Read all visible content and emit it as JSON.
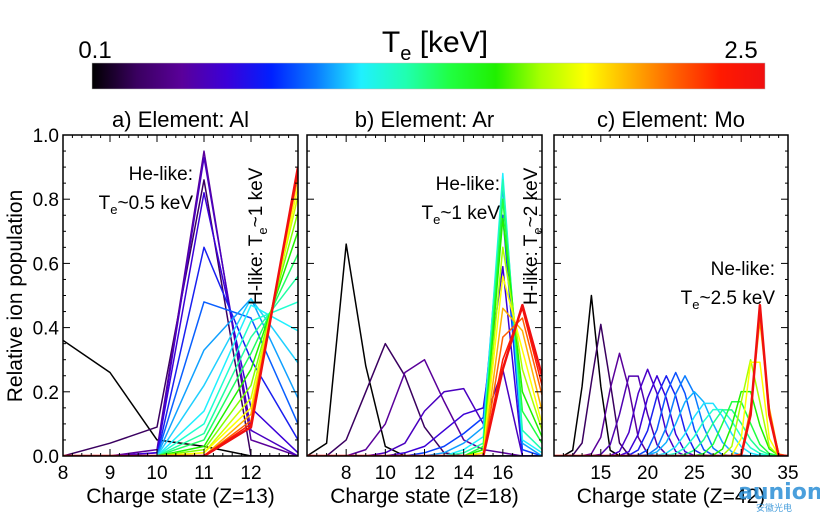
{
  "colorbar": {
    "title": "T",
    "title_sub": "e",
    "title_unit": " [keV]",
    "min_label": "0.1",
    "max_label": "2.5",
    "stops": [
      "#000000",
      "#3a0060",
      "#5a009a",
      "#3b00d8",
      "#0020ff",
      "#0a7cff",
      "#20f0ff",
      "#20ffb0",
      "#20ff40",
      "#20f000",
      "#a8ff00",
      "#ffff00",
      "#ffb000",
      "#ff6000",
      "#ff1a00",
      "#f01010"
    ]
  },
  "ylabel": "Relative ion population",
  "watermark": {
    "text": "aunion",
    "sub": "安徽光电"
  },
  "chart_data": [
    {
      "type": "line",
      "title": "a) Element: Al",
      "xlabel": "Charge state (Z=13)",
      "xlim": [
        8,
        13
      ],
      "ylim": [
        0,
        1.0
      ],
      "xticks": [
        8,
        9,
        10,
        11,
        12
      ],
      "yticks": [
        "0.0",
        "0.2",
        "0.4",
        "0.6",
        "0.8",
        "1.0"
      ],
      "annotations": [
        {
          "text": "He-like:",
          "line2": "T",
          "sub": "e",
          "rest": "~0.5 keV"
        },
        {
          "text": "H-like: T",
          "sub": "e",
          "rest": "~1 keV",
          "rotated": true
        }
      ],
      "x": [
        8,
        9,
        10,
        11,
        12,
        13
      ],
      "series": [
        {
          "color": "#000000",
          "values": [
            0.36,
            0.26,
            0.05,
            0.03,
            0.0,
            0.0
          ]
        },
        {
          "color": "#3a0060",
          "values": [
            0.0,
            0.04,
            0.09,
            0.86,
            0.0,
            0.0
          ]
        },
        {
          "color": "#5a009a",
          "values": [
            0.0,
            0.0,
            0.02,
            0.95,
            0.05,
            0.0
          ]
        },
        {
          "color": "#4a00c0",
          "values": [
            0.0,
            0.0,
            0.01,
            0.93,
            0.08,
            0.0
          ]
        },
        {
          "color": "#3b00d8",
          "values": [
            0.0,
            0.0,
            0.01,
            0.82,
            0.15,
            0.01
          ]
        },
        {
          "color": "#1a20f0",
          "values": [
            0.0,
            0.0,
            0.0,
            0.65,
            0.3,
            0.05
          ]
        },
        {
          "color": "#0a60ff",
          "values": [
            0.0,
            0.0,
            0.0,
            0.48,
            0.43,
            0.1
          ]
        },
        {
          "color": "#10a0ff",
          "values": [
            0.0,
            0.0,
            0.0,
            0.33,
            0.49,
            0.18
          ]
        },
        {
          "color": "#20d0ff",
          "values": [
            0.0,
            0.0,
            0.0,
            0.22,
            0.49,
            0.29
          ]
        },
        {
          "color": "#20f0ff",
          "values": [
            0.0,
            0.0,
            0.0,
            0.14,
            0.47,
            0.39
          ]
        },
        {
          "color": "#20ffd0",
          "values": [
            0.0,
            0.0,
            0.0,
            0.1,
            0.42,
            0.48
          ]
        },
        {
          "color": "#20ffa0",
          "values": [
            0.0,
            0.0,
            0.0,
            0.07,
            0.37,
            0.56
          ]
        },
        {
          "color": "#20ff60",
          "values": [
            0.0,
            0.0,
            0.0,
            0.05,
            0.32,
            0.63
          ]
        },
        {
          "color": "#20f000",
          "values": [
            0.0,
            0.0,
            0.0,
            0.03,
            0.27,
            0.7
          ]
        },
        {
          "color": "#80ff00",
          "values": [
            0.0,
            0.0,
            0.0,
            0.02,
            0.22,
            0.76
          ]
        },
        {
          "color": "#d0ff00",
          "values": [
            0.0,
            0.0,
            0.0,
            0.01,
            0.18,
            0.81
          ]
        },
        {
          "color": "#ffff00",
          "values": [
            0.0,
            0.0,
            0.0,
            0.01,
            0.15,
            0.84
          ]
        },
        {
          "color": "#ffb000",
          "values": [
            0.0,
            0.0,
            0.0,
            0.0,
            0.13,
            0.87
          ]
        },
        {
          "color": "#ff6000",
          "values": [
            0.0,
            0.0,
            0.0,
            0.0,
            0.11,
            0.88
          ]
        },
        {
          "color": "#ff1a00",
          "values": [
            0.0,
            0.0,
            0.0,
            0.0,
            0.1,
            0.89
          ]
        },
        {
          "color": "#f01010",
          "values": [
            0.0,
            0.0,
            0.0,
            0.0,
            0.09,
            0.9
          ]
        }
      ]
    },
    {
      "type": "line",
      "title": "b) Element: Ar",
      "xlabel": "Charge state (Z=18)",
      "xlim": [
        6,
        18
      ],
      "ylim": [
        0,
        1.0
      ],
      "xticks": [
        8,
        10,
        12,
        14,
        16
      ],
      "annotations": [
        {
          "text": "He-like:",
          "line2": "T",
          "sub": "e",
          "rest": "~1 keV"
        },
        {
          "text": "H-like: T",
          "sub": "e",
          "rest": "~2 keV",
          "rotated": true
        }
      ],
      "x": [
        6,
        7,
        8,
        9,
        10,
        11,
        12,
        13,
        14,
        15,
        16,
        17,
        18
      ],
      "series": [
        {
          "color": "#000000",
          "values": [
            0.0,
            0.04,
            0.66,
            0.28,
            0.03,
            0.0,
            0.0,
            0.0,
            0.0,
            0.0,
            0.0,
            0.0,
            0.0
          ]
        },
        {
          "color": "#3a0060",
          "values": [
            0.0,
            0.0,
            0.05,
            0.2,
            0.35,
            0.25,
            0.09,
            0.01,
            0.0,
            0.0,
            0.0,
            0.0,
            0.0
          ]
        },
        {
          "color": "#5a009a",
          "values": [
            0.0,
            0.0,
            0.0,
            0.02,
            0.1,
            0.26,
            0.3,
            0.17,
            0.05,
            0.02,
            0.01,
            0.0,
            0.0
          ]
        },
        {
          "color": "#4a00c0",
          "values": [
            0.0,
            0.0,
            0.0,
            0.0,
            0.01,
            0.04,
            0.14,
            0.2,
            0.21,
            0.1,
            0.27,
            0.0,
            0.0
          ]
        },
        {
          "color": "#3b00d8",
          "values": [
            0.0,
            0.0,
            0.0,
            0.0,
            0.0,
            0.01,
            0.03,
            0.08,
            0.13,
            0.15,
            0.59,
            0.0,
            0.0
          ]
        },
        {
          "color": "#0a40ff",
          "values": [
            0.0,
            0.0,
            0.0,
            0.0,
            0.0,
            0.0,
            0.01,
            0.03,
            0.07,
            0.12,
            0.75,
            0.02,
            0.0
          ]
        },
        {
          "color": "#10a0ff",
          "values": [
            0.0,
            0.0,
            0.0,
            0.0,
            0.0,
            0.0,
            0.0,
            0.01,
            0.04,
            0.09,
            0.84,
            0.04,
            0.0
          ]
        },
        {
          "color": "#20f0ff",
          "values": [
            0.0,
            0.0,
            0.0,
            0.0,
            0.0,
            0.0,
            0.0,
            0.0,
            0.02,
            0.06,
            0.88,
            0.05,
            0.01
          ]
        },
        {
          "color": "#20ffb0",
          "values": [
            0.0,
            0.0,
            0.0,
            0.0,
            0.0,
            0.0,
            0.0,
            0.0,
            0.01,
            0.04,
            0.86,
            0.08,
            0.02
          ]
        },
        {
          "color": "#20ff40",
          "values": [
            0.0,
            0.0,
            0.0,
            0.0,
            0.0,
            0.0,
            0.0,
            0.0,
            0.0,
            0.03,
            0.8,
            0.14,
            0.04
          ]
        },
        {
          "color": "#20f000",
          "values": [
            0.0,
            0.0,
            0.0,
            0.0,
            0.0,
            0.0,
            0.0,
            0.0,
            0.0,
            0.02,
            0.74,
            0.2,
            0.06
          ]
        },
        {
          "color": "#a8ff00",
          "values": [
            0.0,
            0.0,
            0.0,
            0.0,
            0.0,
            0.0,
            0.0,
            0.0,
            0.0,
            0.01,
            0.65,
            0.27,
            0.08
          ]
        },
        {
          "color": "#ffff00",
          "values": [
            0.0,
            0.0,
            0.0,
            0.0,
            0.0,
            0.0,
            0.0,
            0.0,
            0.0,
            0.01,
            0.56,
            0.33,
            0.1
          ]
        },
        {
          "color": "#ffb000",
          "values": [
            0.0,
            0.0,
            0.0,
            0.0,
            0.0,
            0.0,
            0.0,
            0.0,
            0.0,
            0.0,
            0.46,
            0.39,
            0.14
          ]
        },
        {
          "color": "#ff6000",
          "values": [
            0.0,
            0.0,
            0.0,
            0.0,
            0.0,
            0.0,
            0.0,
            0.0,
            0.0,
            0.0,
            0.37,
            0.43,
            0.19
          ]
        },
        {
          "color": "#ff1a00",
          "values": [
            0.0,
            0.0,
            0.0,
            0.0,
            0.0,
            0.0,
            0.0,
            0.0,
            0.0,
            0.0,
            0.3,
            0.46,
            0.22
          ]
        },
        {
          "color": "#f01010",
          "values": [
            0.0,
            0.0,
            0.0,
            0.0,
            0.0,
            0.0,
            0.0,
            0.0,
            0.0,
            0.0,
            0.27,
            0.47,
            0.25
          ]
        }
      ]
    },
    {
      "type": "line",
      "title": "c) Element: Mo",
      "xlabel": "Charge state (Z=42)",
      "xlim": [
        10,
        35
      ],
      "ylim": [
        0,
        1.0
      ],
      "xticks": [
        15,
        20,
        25,
        30,
        35
      ],
      "annotations": [
        {
          "text": "Ne-like:",
          "line2": "T",
          "sub": "e",
          "rest": "~2.5 keV"
        }
      ],
      "peaks": [
        {
          "color": "#000000",
          "center": 14,
          "height": 0.5,
          "width": 1.0
        },
        {
          "color": "#3a0060",
          "center": 15,
          "height": 0.41,
          "width": 1.2
        },
        {
          "color": "#5a009a",
          "center": 17,
          "height": 0.32,
          "width": 1.4
        },
        {
          "color": "#5000b0",
          "center": 18.5,
          "height": 0.27,
          "width": 1.6
        },
        {
          "color": "#4a00c8",
          "center": 20,
          "height": 0.27,
          "width": 1.6
        },
        {
          "color": "#3b00d8",
          "center": 21,
          "height": 0.25,
          "width": 1.6
        },
        {
          "color": "#1a20f0",
          "center": 22,
          "height": 0.25,
          "width": 1.7
        },
        {
          "color": "#0a50ff",
          "center": 23,
          "height": 0.26,
          "width": 1.7
        },
        {
          "color": "#0a7cff",
          "center": 24,
          "height": 0.25,
          "width": 1.8
        },
        {
          "color": "#10b0ff",
          "center": 25,
          "height": 0.2,
          "width": 2.2
        },
        {
          "color": "#20e0ff",
          "center": 26.5,
          "height": 0.17,
          "width": 2.4
        },
        {
          "color": "#20ffd0",
          "center": 27.5,
          "height": 0.15,
          "width": 2.4
        },
        {
          "color": "#20ff90",
          "center": 28.5,
          "height": 0.15,
          "width": 2.2
        },
        {
          "color": "#20ff40",
          "center": 29.5,
          "height": 0.18,
          "width": 1.8
        },
        {
          "color": "#20f000",
          "center": 30.5,
          "height": 0.22,
          "width": 1.5
        },
        {
          "color": "#a8ff00",
          "center": 31,
          "height": 0.3,
          "width": 1.2
        },
        {
          "color": "#ffff00",
          "center": 31.5,
          "height": 0.36,
          "width": 1.0
        },
        {
          "color": "#ffb000",
          "center": 32,
          "height": 0.42,
          "width": 0.9
        },
        {
          "color": "#ff6000",
          "center": 32,
          "height": 0.45,
          "width": 0.85
        },
        {
          "color": "#ff1a00",
          "center": 32,
          "height": 0.46,
          "width": 0.8
        },
        {
          "color": "#f01010",
          "center": 32,
          "height": 0.47,
          "width": 0.8
        }
      ]
    }
  ]
}
